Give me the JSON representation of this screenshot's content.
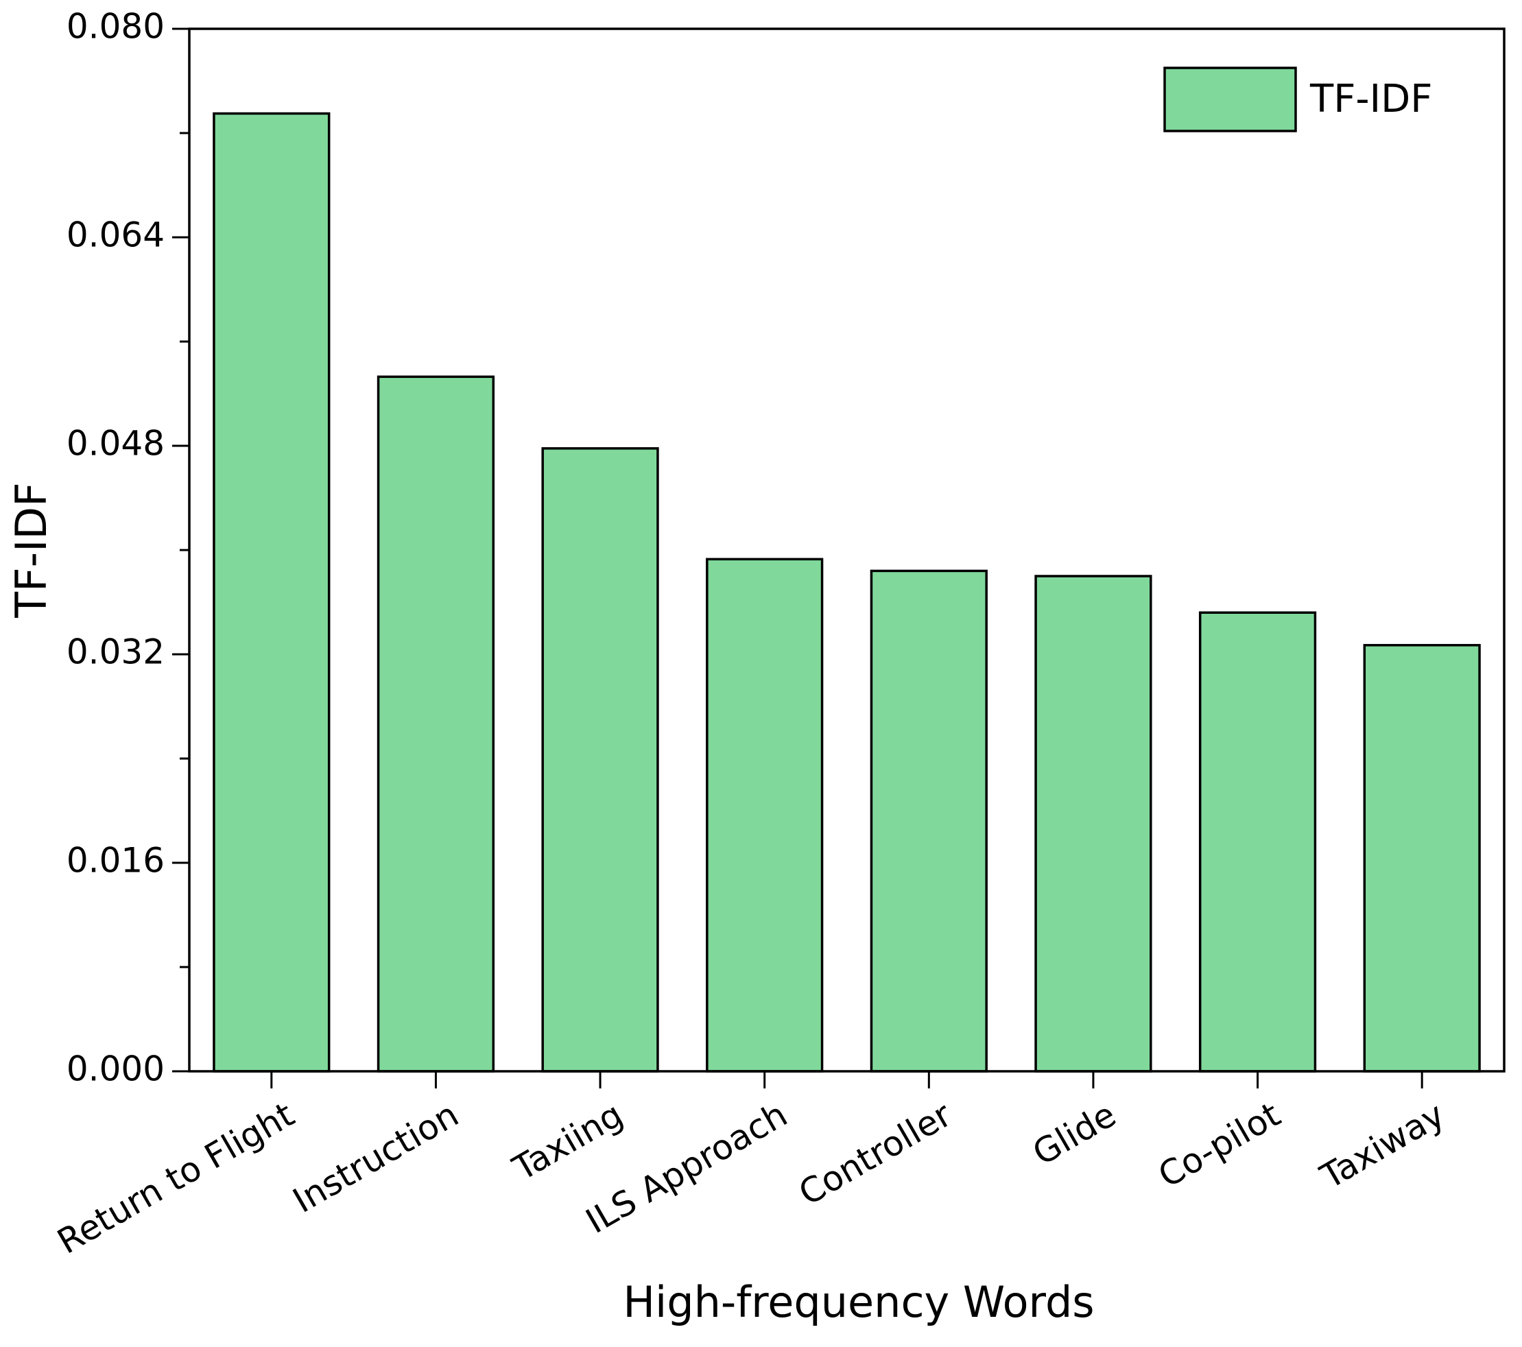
{
  "chart_data": {
    "type": "bar",
    "x_label": "High-frequency Words",
    "y_label": "TF-IDF",
    "categories": [
      "Return to Flight",
      "Instruction",
      "Taxiing",
      "ILS Approach",
      "Controller",
      "Glide",
      "Co-pilot",
      "Taxiway"
    ],
    "series": [
      {
        "name": "TF-IDF",
        "color": "#80d99b",
        "values": [
          0.0735,
          0.0533,
          0.0478,
          0.0393,
          0.0384,
          0.038,
          0.0352,
          0.0327
        ]
      }
    ],
    "ylim": [
      0,
      0.08
    ],
    "yticks": [
      {
        "value": 0,
        "label": "0.000"
      },
      {
        "value": 0.016,
        "label": "0.016"
      },
      {
        "value": 0.032,
        "label": "0.032"
      },
      {
        "value": 0.048,
        "label": "0.048"
      },
      {
        "value": 0.064,
        "label": "0.064"
      },
      {
        "value": 0.08,
        "label": "0.080"
      }
    ],
    "yminorticks": [
      0.008,
      0.024,
      0.04,
      0.056,
      0.072
    ],
    "legend": "upper right"
  }
}
